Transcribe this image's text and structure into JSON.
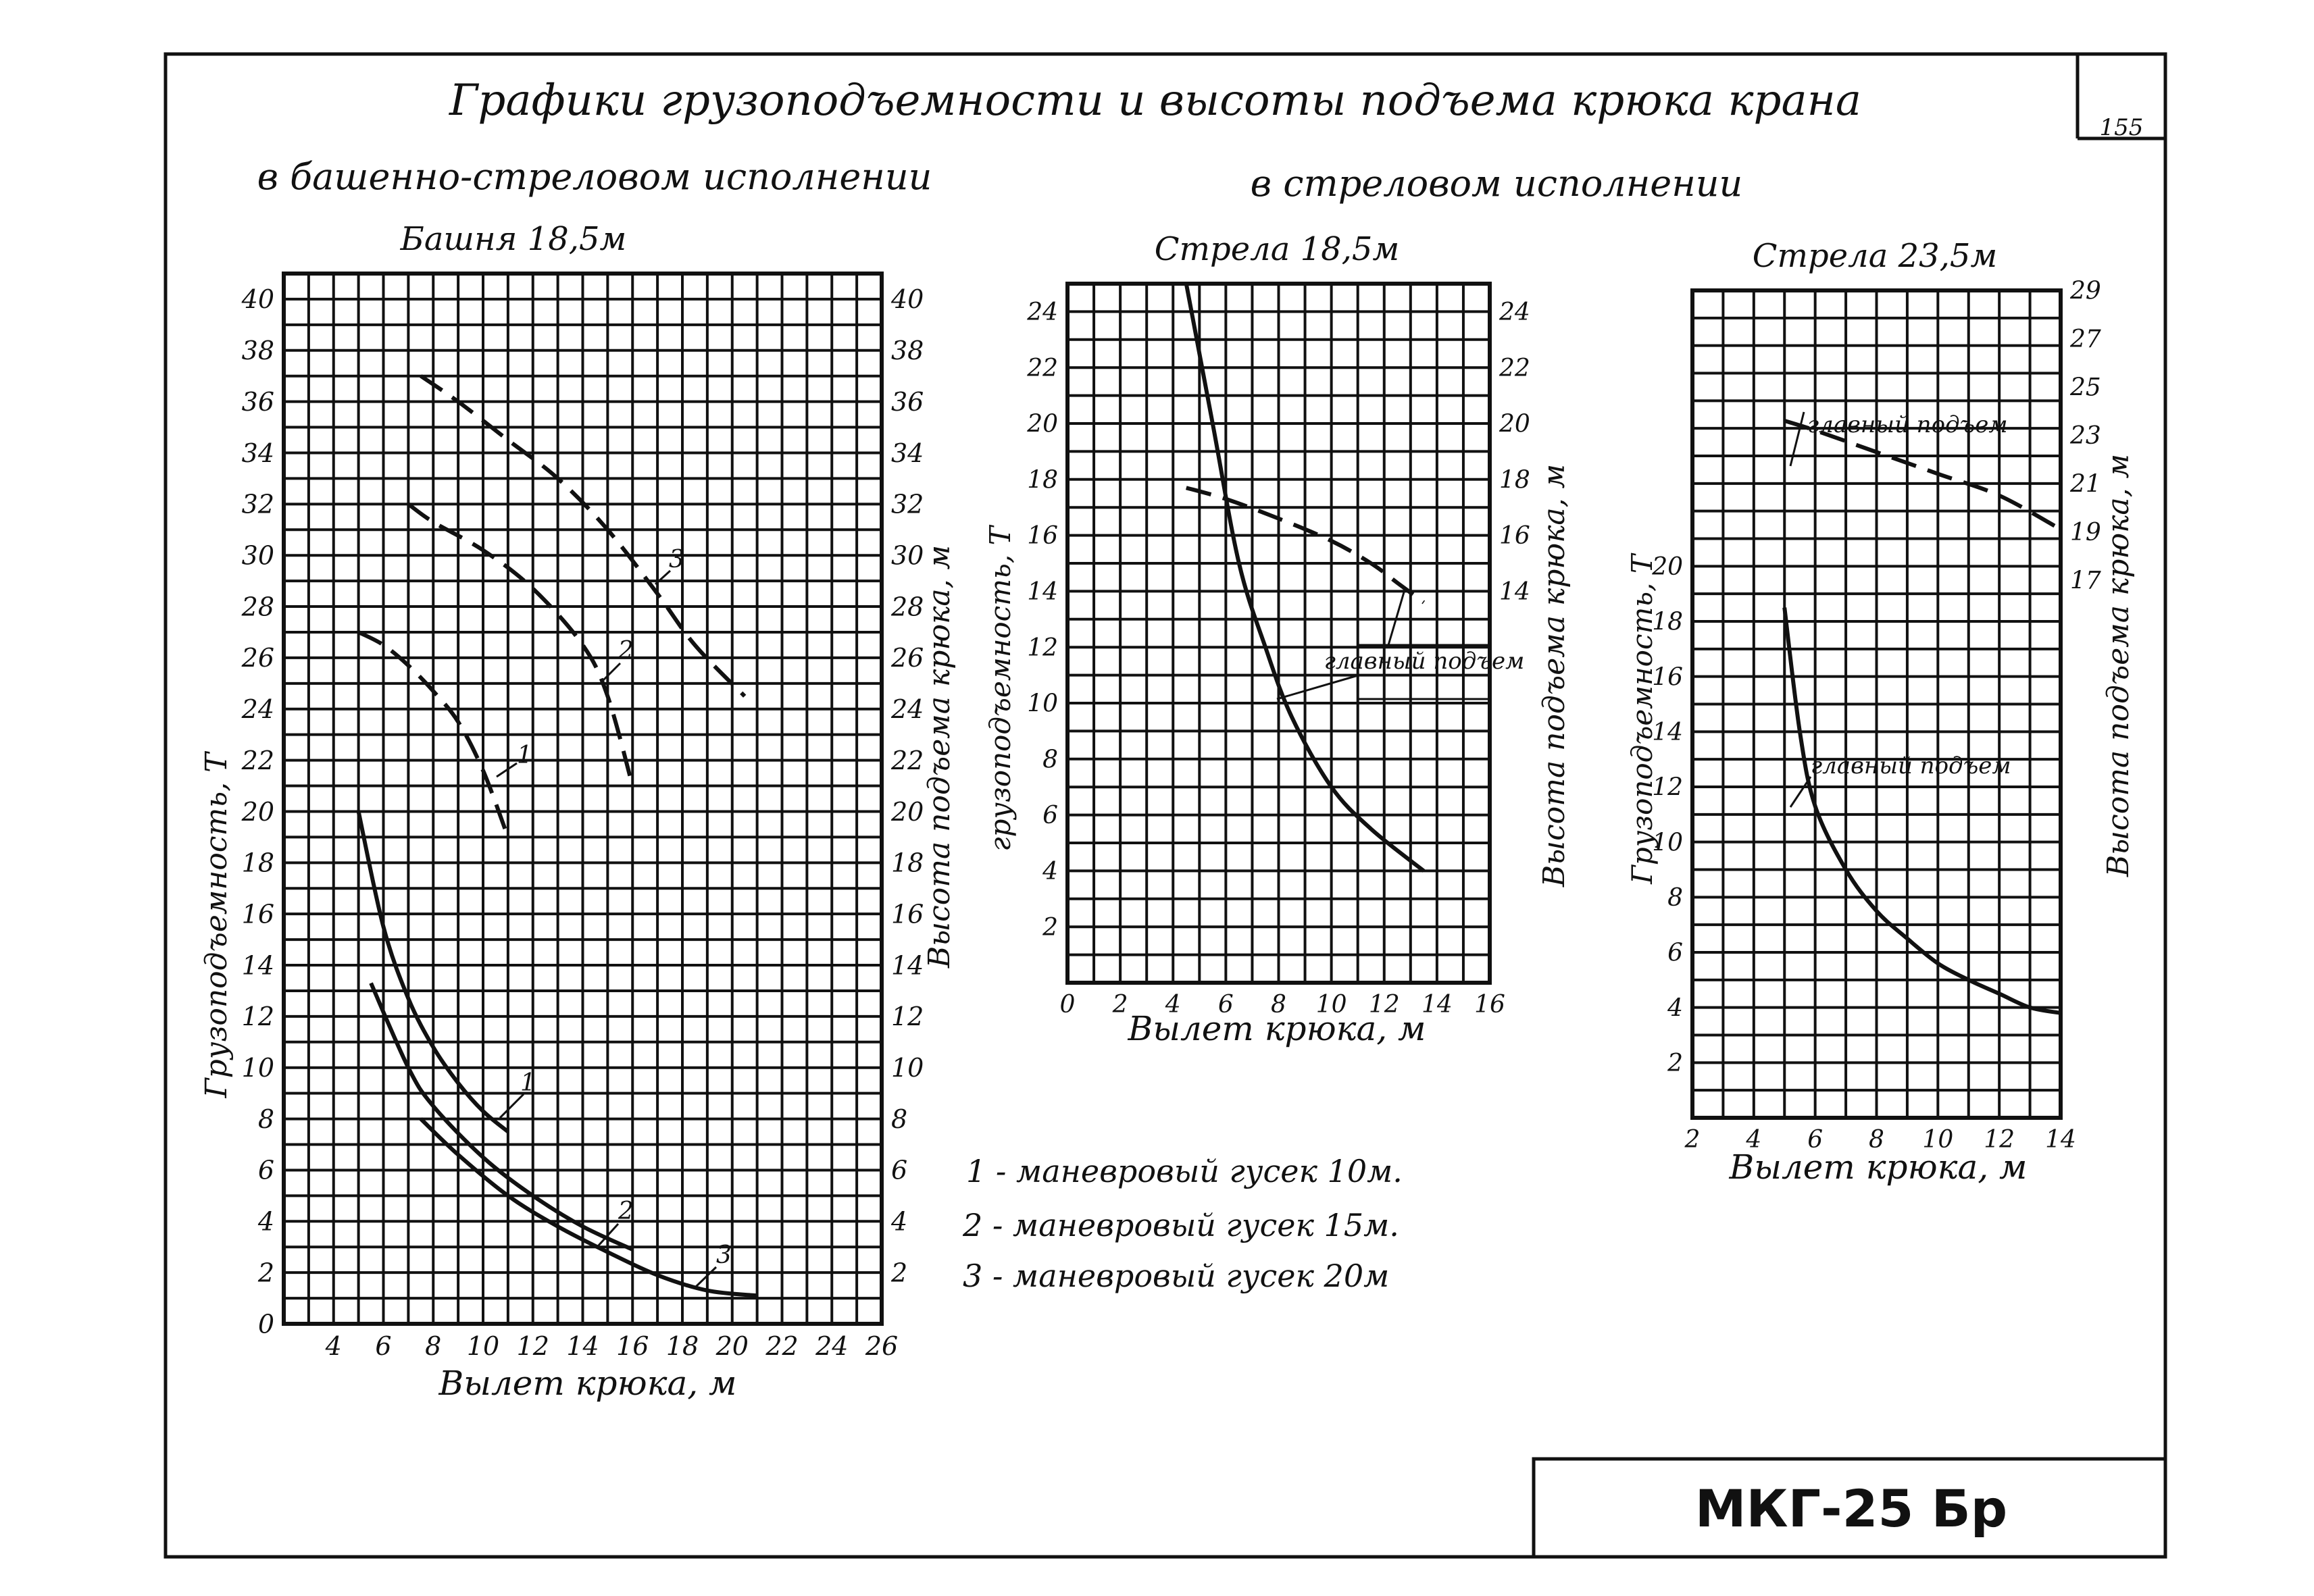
{
  "sheet": {
    "title": "Графики грузоподъемности и высоты подъема крюка крана",
    "left_heading": "в башенно-стреловом исполнении",
    "right_heading": "в стреловом исполнении",
    "page_number": "155",
    "stamp": "МКГ-25 Бр"
  },
  "legend": {
    "items": [
      "1 - маневровый гусек 10м.",
      "2 - маневровый гусек 15м.",
      "3 - маневровый гусек 20м"
    ]
  },
  "chart_data": [
    {
      "type": "line",
      "title": "Башня 18,5м",
      "xlabel": "Вылет крюка, м",
      "ylabel_left": "Грузоподъемность, Т",
      "ylabel_right": "Высота подъема крюка, м",
      "xlim": [
        2,
        26
      ],
      "ylim": [
        0,
        41
      ],
      "x_ticks": [
        "4",
        "6",
        "8",
        "10",
        "12",
        "14",
        "16",
        "18",
        "20",
        "22",
        "24",
        "26"
      ],
      "y_ticks_left": [
        "0",
        "2",
        "4",
        "6",
        "8",
        "10",
        "12",
        "14",
        "16",
        "18",
        "20",
        "22",
        "24",
        "26",
        "28",
        "30",
        "32",
        "34",
        "36",
        "38",
        "40"
      ],
      "y_ticks_right": [
        "2",
        "4",
        "6",
        "8",
        "10",
        "12",
        "14",
        "16",
        "18",
        "20",
        "22",
        "24",
        "26",
        "28",
        "30",
        "32",
        "34",
        "36",
        "38",
        "40"
      ],
      "grid": true,
      "series": [
        {
          "name": "1",
          "kind": "capacity",
          "style": "solid",
          "x": [
            5,
            6,
            7,
            8,
            9,
            10,
            11
          ],
          "y": [
            20,
            15.5,
            12.7,
            10.8,
            9.4,
            8.3,
            7.5
          ]
        },
        {
          "name": "2",
          "kind": "capacity",
          "style": "solid",
          "x": [
            5.5,
            7,
            8,
            10,
            12,
            14,
            16
          ],
          "y": [
            13.3,
            10,
            8.5,
            6.5,
            5,
            3.8,
            2.9
          ]
        },
        {
          "name": "3",
          "kind": "capacity",
          "style": "solid",
          "x": [
            7.5,
            9,
            11,
            13,
            15,
            17,
            19,
            21
          ],
          "y": [
            8,
            6.6,
            5,
            3.8,
            2.8,
            1.9,
            1.3,
            1.1
          ]
        },
        {
          "name": "1",
          "kind": "height",
          "style": "dashed",
          "x": [
            5,
            6,
            7,
            8,
            9,
            10,
            11
          ],
          "y": [
            27,
            26.5,
            25.7,
            24.7,
            23.5,
            21.6,
            19
          ]
        },
        {
          "name": "2",
          "kind": "height",
          "style": "dashed",
          "x": [
            7,
            8,
            10,
            12,
            14,
            15,
            16
          ],
          "y": [
            32,
            31.3,
            30.2,
            28.7,
            26.5,
            24.5,
            21
          ]
        },
        {
          "name": "3",
          "kind": "height",
          "style": "dashed",
          "x": [
            7.5,
            9,
            11,
            13,
            15,
            17,
            18.5,
            20.5
          ],
          "y": [
            37,
            36,
            34.5,
            33,
            31,
            28.5,
            26.5,
            24.5
          ]
        }
      ],
      "annotations": [
        "1",
        "2",
        "3",
        "1",
        "2",
        "3"
      ]
    },
    {
      "type": "line",
      "title": "Стрела 18,5м",
      "xlabel": "Вылет крюка, м",
      "ylabel_left": "грузоподъемность, Т",
      "ylabel_right": "Высота подъема крюка, м",
      "xlim": [
        0,
        16
      ],
      "ylim": [
        0,
        25
      ],
      "x_ticks": [
        "0",
        "2",
        "4",
        "6",
        "8",
        "10",
        "12",
        "14",
        "16"
      ],
      "y_ticks_left": [
        "2",
        "4",
        "6",
        "8",
        "10",
        "12",
        "14",
        "16",
        "18",
        "20",
        "22",
        "24"
      ],
      "y_ticks_right": [
        "14",
        "16",
        "18",
        "20",
        "22",
        "24"
      ],
      "grid": true,
      "series": [
        {
          "name": "главный подъем",
          "kind": "capacity",
          "style": "solid",
          "x": [
            4.5,
            5.5,
            6.5,
            7.5,
            8.5,
            10,
            11.5,
            13.5
          ],
          "y": [
            25,
            20,
            15,
            12,
            9.5,
            7,
            5.5,
            4
          ]
        },
        {
          "name": "главный подъем",
          "kind": "height",
          "style": "dashed",
          "x": [
            4.5,
            6,
            8,
            10,
            11.5,
            12.5,
            13.5
          ],
          "y": [
            17.7,
            17.3,
            16.6,
            15.8,
            15,
            14.3,
            13.6
          ]
        }
      ],
      "annotations": [
        "главный подъем"
      ]
    },
    {
      "type": "line",
      "title": "Стрела 23,5м",
      "xlabel": "Вылет крюка, м",
      "ylabel_left": "Грузоподъемность, Т",
      "ylabel_right": "Высота подъема крюка, м",
      "xlim": [
        2,
        14
      ],
      "ylim": [
        0,
        30
      ],
      "x_ticks": [
        "2",
        "4",
        "6",
        "8",
        "10",
        "12",
        "14"
      ],
      "y_ticks_left": [
        "2",
        "4",
        "6",
        "8",
        "10",
        "12",
        "14",
        "16",
        "18",
        "20"
      ],
      "y_ticks_right": [
        "17",
        "19",
        "21",
        "23",
        "25",
        "27",
        "29"
      ],
      "grid": true,
      "series": [
        {
          "name": "главный подъем",
          "kind": "capacity",
          "style": "solid",
          "x": [
            5,
            5.5,
            6,
            7,
            8,
            9,
            10,
            11,
            12,
            13,
            14
          ],
          "y": [
            18.5,
            14,
            11.3,
            9,
            7.5,
            6.5,
            5.6,
            5,
            4.5,
            4,
            3.8
          ]
        },
        {
          "name": "главный подъем",
          "kind": "height",
          "style": "dashed",
          "x": [
            5,
            6,
            8,
            10,
            12,
            14
          ],
          "y": [
            23.6,
            23.2,
            22.3,
            21.4,
            20.5,
            19.1
          ]
        }
      ],
      "annotations": [
        "главный подъем",
        "главный подъем"
      ]
    }
  ]
}
